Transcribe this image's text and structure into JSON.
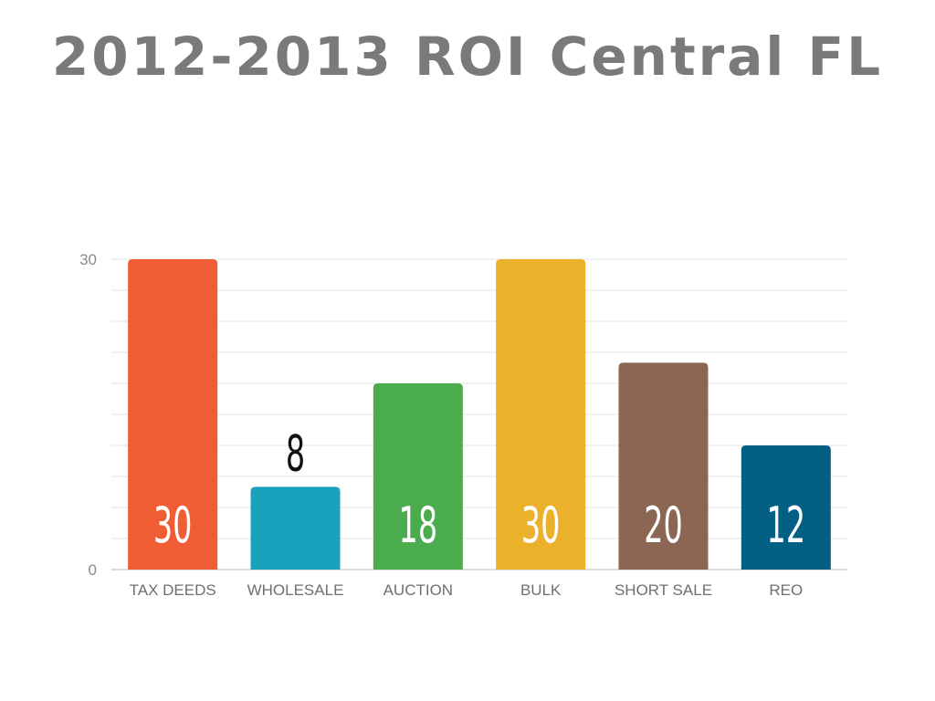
{
  "title": "2012-2013 ROI Central FL",
  "chart_data": {
    "type": "bar",
    "title": "2012-2013 ROI Central FL",
    "xlabel": "",
    "ylabel": "",
    "ylim": [
      0,
      30
    ],
    "y_ticks": [
      0,
      30
    ],
    "grid": true,
    "legend": "none",
    "categories": [
      "TAX DEEDS",
      "WHOLESALE",
      "AUCTION",
      "BULK",
      "SHORT SALE",
      "REO"
    ],
    "values": [
      30,
      8,
      18,
      30,
      20,
      12
    ],
    "colors": [
      "#f05d35",
      "#1aa1be",
      "#4bac4d",
      "#ecb12a",
      "#8a6653",
      "#045f85"
    ],
    "data_labels": [
      "30",
      "8",
      "18",
      "30",
      "20",
      "12"
    ]
  }
}
